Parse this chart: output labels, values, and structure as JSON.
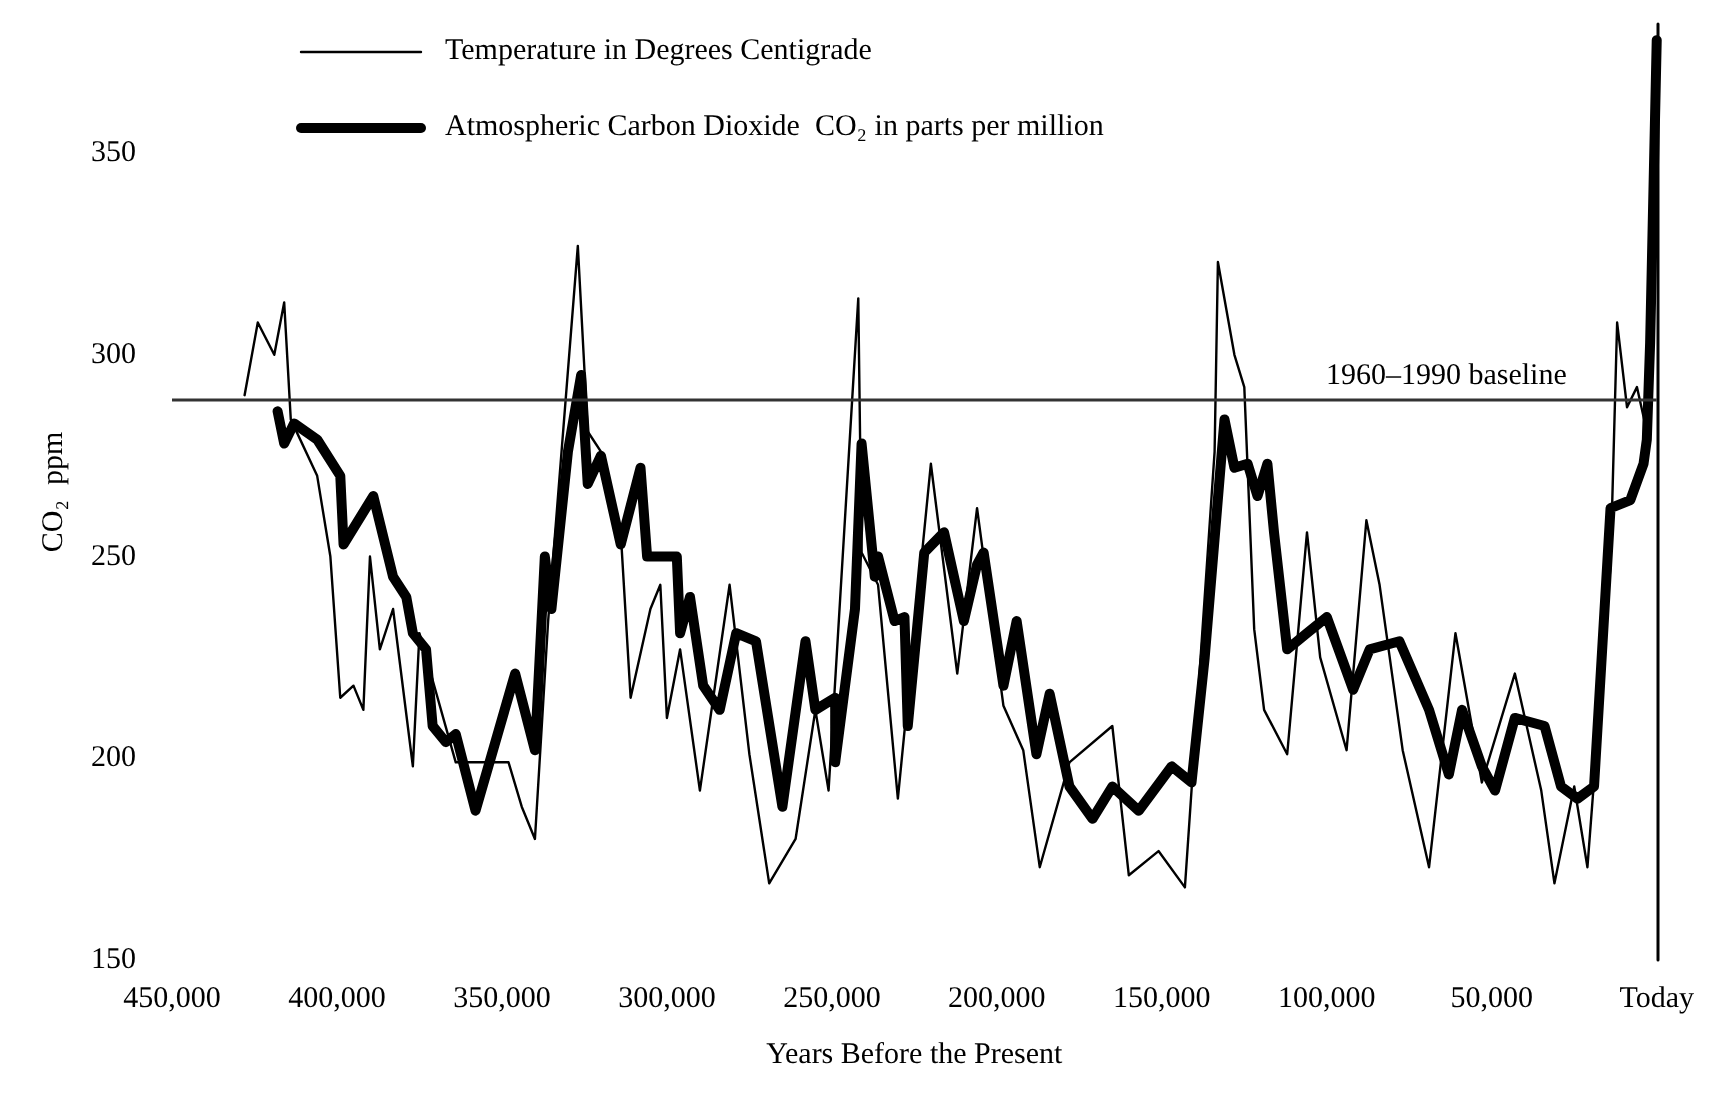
{
  "chart_data": {
    "type": "line",
    "xlabel": "Years Before the Present",
    "ylabel": "CO₂  ppm",
    "xlim": [
      450000,
      0
    ],
    "xticks": [
      {
        "value": 450000,
        "label": "450,000"
      },
      {
        "value": 400000,
        "label": "400,000"
      },
      {
        "value": 350000,
        "label": "350,000"
      },
      {
        "value": 300000,
        "label": "300,000"
      },
      {
        "value": 250000,
        "label": "250,000"
      },
      {
        "value": 200000,
        "label": "200,000"
      },
      {
        "value": 150000,
        "label": "150,000"
      },
      {
        "value": 100000,
        "label": "100,000"
      },
      {
        "value": 50000,
        "label": "50,000"
      },
      {
        "value": 0,
        "label": "Today"
      }
    ],
    "ylim": [
      150,
      382
    ],
    "yticks": [
      150,
      200,
      250,
      300,
      350
    ],
    "grid": false,
    "legend": "top left",
    "marker": "none",
    "line_style": "solid",
    "ref_lines": [
      {
        "axis": "y",
        "value": 289,
        "label": "1960–1990 baseline",
        "color": "#333333"
      }
    ],
    "series": [
      {
        "name": "Temperature in Degrees Centigrade",
        "color": "#000000",
        "x": [
          428000,
          424000,
          419000,
          416000,
          414000,
          406000,
          402000,
          399000,
          395000,
          392000,
          390000,
          387000,
          383000,
          377000,
          375000,
          364000,
          348000,
          344000,
          340000,
          336000,
          327000,
          324000,
          320000,
          314000,
          311000,
          305000,
          302000,
          300000,
          296000,
          290000,
          281000,
          275000,
          269000,
          261000,
          255000,
          251000,
          242000,
          241000,
          236000,
          230000,
          220000,
          212000,
          206000,
          198000,
          192000,
          187000,
          178000,
          165000,
          160000,
          151000,
          143000,
          134000,
          133000,
          128000,
          125000,
          122000,
          119000,
          112000,
          106000,
          102000,
          94000,
          88000,
          84000,
          77000,
          69000,
          61000,
          53000,
          43000,
          35000,
          31000,
          25000,
          21000,
          14000,
          12000,
          9000,
          6000,
          3000
        ],
        "values": [
          290,
          308,
          300,
          313,
          284,
          270,
          250,
          215,
          218,
          212,
          250,
          227,
          237,
          198,
          231,
          199,
          199,
          188,
          180,
          234,
          327,
          281,
          276,
          256,
          215,
          237,
          243,
          210,
          227,
          192,
          243,
          201,
          169,
          180,
          212,
          192,
          314,
          251,
          243,
          190,
          273,
          221,
          262,
          213,
          202,
          173,
          199,
          208,
          171,
          177,
          168,
          276,
          323,
          300,
          292,
          232,
          212,
          201,
          256,
          225,
          202,
          259,
          243,
          202,
          173,
          231,
          194,
          221,
          192,
          169,
          193,
          173,
          248,
          308,
          287,
          292,
          281
        ]
      },
      {
        "name": "Atmospheric Carbon Dioxide  CO₂ in parts per million",
        "color": "#000000",
        "x": [
          418000,
          416000,
          413000,
          406000,
          399000,
          398000,
          389000,
          383000,
          379000,
          377000,
          373000,
          371000,
          367000,
          364000,
          358000,
          346000,
          340000,
          337000,
          335000,
          330000,
          326000,
          324000,
          320000,
          314000,
          308000,
          306000,
          297000,
          296000,
          293000,
          289000,
          284000,
          279000,
          273000,
          265000,
          258000,
          255000,
          249000,
          249000,
          243000,
          241000,
          237000,
          236000,
          231000,
          228000,
          227000,
          222000,
          216000,
          210000,
          206000,
          204000,
          198000,
          194000,
          188000,
          184000,
          178000,
          171000,
          165000,
          157000,
          147000,
          141000,
          137000,
          131000,
          128000,
          124000,
          121000,
          118000,
          116000,
          112000,
          106000,
          100000,
          92000,
          87000,
          78000,
          69000,
          63000,
          59000,
          53000,
          49000,
          43000,
          34000,
          29000,
          24000,
          19000,
          14000,
          8000,
          4000,
          3000,
          2000,
          0
        ],
        "values": [
          286,
          278,
          283,
          279,
          270,
          253,
          265,
          245,
          240,
          231,
          227,
          208,
          204,
          206,
          187,
          221,
          202,
          250,
          237,
          276,
          295,
          268,
          275,
          253,
          272,
          250,
          250,
          231,
          240,
          218,
          212,
          231,
          229,
          188,
          229,
          212,
          215,
          199,
          237,
          278,
          245,
          250,
          234,
          235,
          208,
          251,
          256,
          234,
          248,
          251,
          218,
          234,
          201,
          216,
          193,
          185,
          193,
          187,
          198,
          194,
          225,
          284,
          272,
          273,
          265,
          273,
          256,
          227,
          231,
          235,
          217,
          227,
          229,
          212,
          196,
          212,
          198,
          192,
          210,
          208,
          193,
          190,
          193,
          262,
          264,
          273,
          279,
          303,
          378
        ]
      }
    ]
  }
}
